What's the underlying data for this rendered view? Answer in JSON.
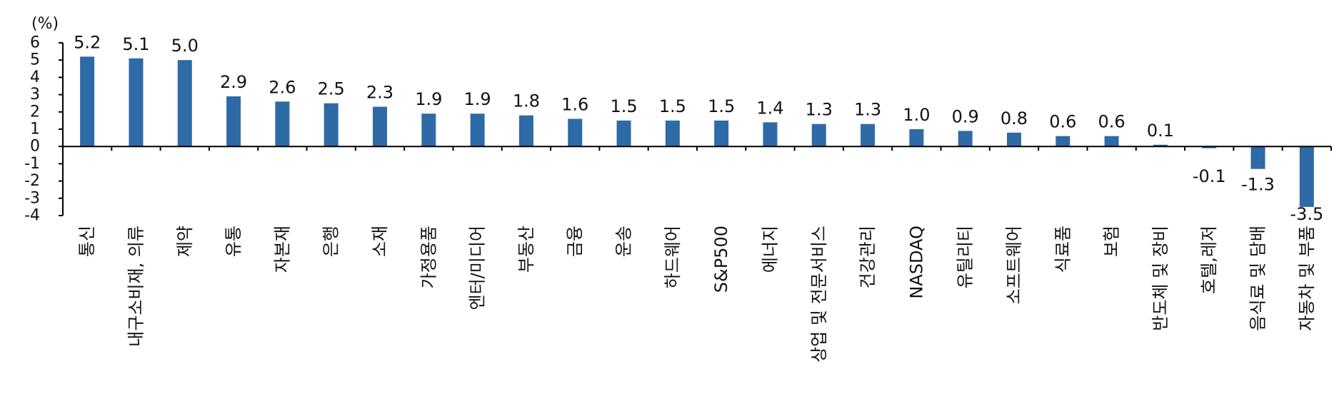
{
  "chart_data": {
    "type": "bar",
    "title": "",
    "xlabel": "",
    "ylabel": "(%)",
    "ylim": [
      -4,
      6
    ],
    "yticks": [
      6,
      5,
      4,
      3,
      2,
      1,
      0,
      -1,
      -2,
      -3,
      -4
    ],
    "ytick_labels": [
      "6",
      "5",
      "4",
      "3",
      "2",
      "1",
      "0",
      "-1",
      "-2",
      "-3",
      "-4"
    ],
    "grid": false,
    "bar_color": "#2E6AA6",
    "categories": [
      "통신",
      "내구소비재, 의류",
      "제약",
      "유통",
      "자본재",
      "은행",
      "소재",
      "가정용품",
      "엔터/미디어",
      "부동산",
      "금융",
      "운송",
      "하드웨어",
      "S&P500",
      "에너지",
      "상업 및 전문서비스",
      "건강관리",
      "NASDAQ",
      "유틸리티",
      "소프트웨어",
      "식료품",
      "보험",
      "반도체 및 장비",
      "호텔,레저",
      "음식료 및 담배",
      "자동차 및 부품"
    ],
    "values": [
      5.2,
      5.1,
      5.0,
      2.9,
      2.6,
      2.5,
      2.3,
      1.9,
      1.9,
      1.8,
      1.6,
      1.5,
      1.5,
      1.5,
      1.4,
      1.3,
      1.3,
      1.0,
      0.9,
      0.8,
      0.6,
      0.6,
      0.1,
      -0.1,
      -1.3,
      -3.5
    ],
    "value_labels": [
      "5.2",
      "5.1",
      "5.0",
      "2.9",
      "2.6",
      "2.5",
      "2.3",
      "1.9",
      "1.9",
      "1.8",
      "1.6",
      "1.5",
      "1.5",
      "1.5",
      "1.4",
      "1.3",
      "1.3",
      "1.0",
      "0.9",
      "0.8",
      "0.6",
      "0.6",
      "0.1",
      "-0.1",
      "-1.3",
      "-3.5"
    ]
  }
}
